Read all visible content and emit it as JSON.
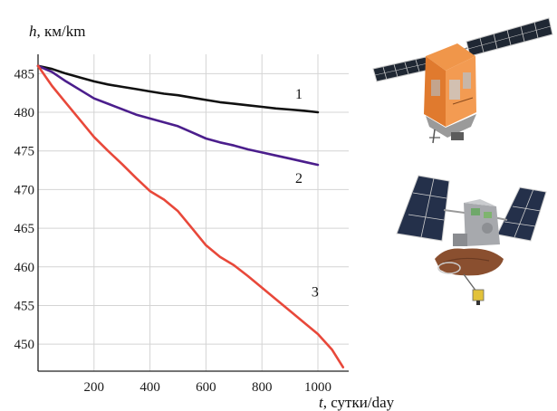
{
  "chart_data": {
    "type": "line",
    "ylabel": {
      "symbol": "h",
      "unit": ", км/km"
    },
    "xlabel": {
      "symbol": "t",
      "unit": ", сутки/day"
    },
    "xlim": [
      0,
      1110
    ],
    "ylim": [
      446.5,
      487.5
    ],
    "grid": true,
    "x_ticks": [
      200,
      400,
      600,
      800,
      1000
    ],
    "y_ticks": [
      450,
      455,
      460,
      465,
      470,
      475,
      480,
      485
    ],
    "series": [
      {
        "name": "1",
        "color": "#111111",
        "x": [
          0,
          50,
          100,
          150,
          200,
          250,
          300,
          350,
          400,
          450,
          500,
          550,
          600,
          650,
          700,
          750,
          800,
          850,
          900,
          950,
          1000
        ],
        "y": [
          486,
          485.6,
          485.0,
          484.5,
          484.0,
          483.6,
          483.3,
          483.0,
          482.7,
          482.4,
          482.2,
          481.9,
          481.6,
          481.3,
          481.1,
          480.9,
          480.7,
          480.5,
          480.35,
          480.2,
          480.0
        ]
      },
      {
        "name": "2",
        "color": "#4b1e8c",
        "x": [
          0,
          50,
          100,
          150,
          200,
          250,
          300,
          350,
          400,
          450,
          500,
          550,
          600,
          650,
          700,
          750,
          800,
          850,
          900,
          950,
          1000
        ],
        "y": [
          486,
          485.2,
          484.0,
          482.9,
          481.8,
          481.1,
          480.4,
          479.7,
          479.2,
          478.7,
          478.2,
          477.4,
          476.6,
          476.1,
          475.7,
          475.2,
          474.8,
          474.4,
          474.0,
          473.6,
          473.2
        ]
      },
      {
        "name": "3",
        "color": "#e8483a",
        "x": [
          0,
          50,
          100,
          150,
          200,
          250,
          300,
          350,
          400,
          450,
          500,
          550,
          600,
          650,
          700,
          750,
          800,
          850,
          900,
          950,
          1000,
          1050,
          1090
        ],
        "y": [
          486,
          483.4,
          481.2,
          479.0,
          476.8,
          475.0,
          473.3,
          471.5,
          469.8,
          468.7,
          467.2,
          465.0,
          462.8,
          461.3,
          460.2,
          458.8,
          457.3,
          455.8,
          454.3,
          452.8,
          451.3,
          449.3,
          447.0
        ]
      }
    ]
  },
  "illustrations": {
    "satellite_top": {
      "icon": "satellite-orange-icon"
    },
    "satellite_bottom": {
      "icon": "satellite-gray-icon"
    }
  },
  "colors": {
    "grid": "#d4d4d4",
    "axis": "#222222"
  }
}
